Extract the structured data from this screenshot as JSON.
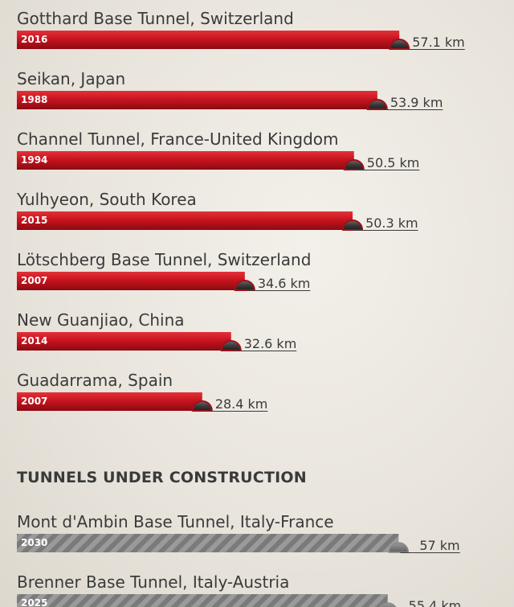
{
  "colors": {
    "completed_bar": "#c8141e",
    "construction_bar": "#8e8e8e",
    "drill_head": "#3b3b3b",
    "text": "#3a3a3a"
  },
  "chart_data": {
    "type": "bar",
    "orientation": "horizontal",
    "unit": "km",
    "groups": [
      {
        "heading": "",
        "style": "completed",
        "items": [
          {
            "name": "Gotthard Base Tunnel, Switzerland",
            "year": "2016",
            "value": 57.1,
            "label": "57.1 km"
          },
          {
            "name": "Seikan, Japan",
            "year": "1988",
            "value": 53.9,
            "label": "53.9 km"
          },
          {
            "name": "Channel Tunnel, France-United Kingdom",
            "year": "1994",
            "value": 50.5,
            "label": "50.5 km"
          },
          {
            "name": "Yulhyeon, South Korea",
            "year": "2015",
            "value": 50.3,
            "label": "50.3 km"
          },
          {
            "name": "Lötschberg Base Tunnel, Switzerland",
            "year": "2007",
            "value": 34.6,
            "label": "34.6 km"
          },
          {
            "name": "New Guanjiao, China",
            "year": "2014",
            "value": 32.6,
            "label": "32.6 km"
          },
          {
            "name": "Guadarrama, Spain",
            "year": "2007",
            "value": 28.4,
            "label": "28.4 km"
          }
        ]
      },
      {
        "heading": "TUNNELS UNDER CONSTRUCTION",
        "style": "construction",
        "items": [
          {
            "name": "Mont d'Ambin Base Tunnel, Italy-France",
            "year": "2030",
            "value": 57,
            "label": "57 km"
          },
          {
            "name": "Brenner Base Tunnel, Italy-Austria",
            "year": "2025",
            "value": 55.4,
            "label": "55.4 km"
          }
        ]
      }
    ]
  }
}
